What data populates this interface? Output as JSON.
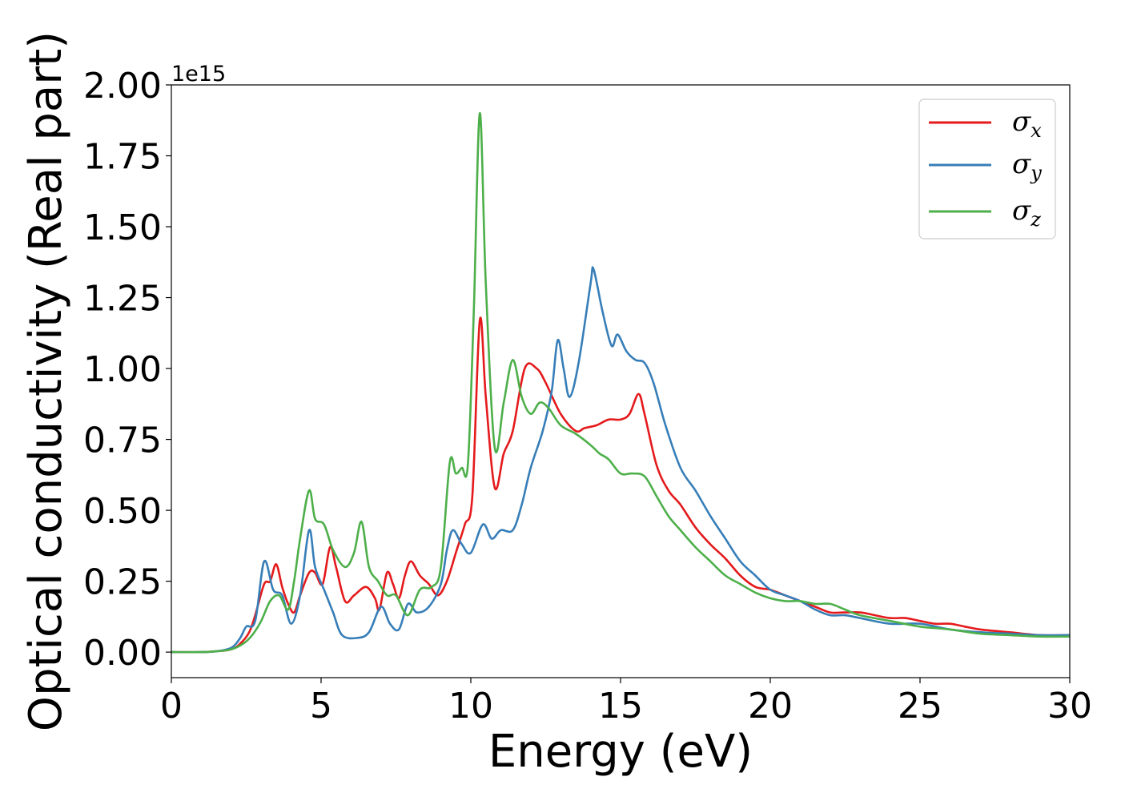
{
  "chart_data": {
    "type": "line",
    "title": "",
    "xlabel": "Energy (eV)",
    "ylabel": "Optical conductivity (Real part)",
    "y_offset_label": "1e15",
    "xlim": [
      0,
      30
    ],
    "ylim": [
      -0.09,
      2.0
    ],
    "x_ticks": [
      0,
      5,
      10,
      15,
      20,
      25,
      30
    ],
    "x_tick_labels": [
      "0",
      "5",
      "10",
      "15",
      "20",
      "25",
      "30"
    ],
    "y_ticks": [
      0.0,
      0.25,
      0.5,
      0.75,
      1.0,
      1.25,
      1.5,
      1.75,
      2.0
    ],
    "y_tick_labels": [
      "0.00",
      "0.25",
      "0.50",
      "0.75",
      "1.00",
      "1.25",
      "1.50",
      "1.75",
      "2.00"
    ],
    "grid": false,
    "legend_position": "top-right",
    "series": [
      {
        "name": "σx",
        "symbol": "σ",
        "subscript": "x",
        "color": "#e41a1c",
        "points": [
          [
            0,
            0
          ],
          [
            1,
            0
          ],
          [
            1.5,
            0.003
          ],
          [
            2,
            0.01
          ],
          [
            2.3,
            0.03
          ],
          [
            2.6,
            0.07
          ],
          [
            2.8,
            0.13
          ],
          [
            3.1,
            0.24
          ],
          [
            3.3,
            0.25
          ],
          [
            3.5,
            0.31
          ],
          [
            3.7,
            0.23
          ],
          [
            3.9,
            0.17
          ],
          [
            4.1,
            0.14
          ],
          [
            4.3,
            0.2
          ],
          [
            4.6,
            0.28
          ],
          [
            4.8,
            0.28
          ],
          [
            5.05,
            0.24
          ],
          [
            5.3,
            0.37
          ],
          [
            5.5,
            0.3
          ],
          [
            5.8,
            0.18
          ],
          [
            6.1,
            0.2
          ],
          [
            6.5,
            0.23
          ],
          [
            6.8,
            0.19
          ],
          [
            6.95,
            0.15
          ],
          [
            7.2,
            0.28
          ],
          [
            7.4,
            0.24
          ],
          [
            7.6,
            0.19
          ],
          [
            7.8,
            0.27
          ],
          [
            8.0,
            0.32
          ],
          [
            8.3,
            0.27
          ],
          [
            8.6,
            0.24
          ],
          [
            8.9,
            0.2
          ],
          [
            9.2,
            0.25
          ],
          [
            9.5,
            0.35
          ],
          [
            9.8,
            0.45
          ],
          [
            10.05,
            0.55
          ],
          [
            10.3,
            1.17
          ],
          [
            10.5,
            0.9
          ],
          [
            10.8,
            0.58
          ],
          [
            11.1,
            0.7
          ],
          [
            11.4,
            0.78
          ],
          [
            11.8,
            1.0
          ],
          [
            12.2,
            1.0
          ],
          [
            12.5,
            0.95
          ],
          [
            13.0,
            0.84
          ],
          [
            13.5,
            0.78
          ],
          [
            13.8,
            0.79
          ],
          [
            14.2,
            0.8
          ],
          [
            14.6,
            0.82
          ],
          [
            15.0,
            0.82
          ],
          [
            15.3,
            0.84
          ],
          [
            15.6,
            0.91
          ],
          [
            15.8,
            0.84
          ],
          [
            16.2,
            0.66
          ],
          [
            16.6,
            0.57
          ],
          [
            17.0,
            0.52
          ],
          [
            17.5,
            0.44
          ],
          [
            18.0,
            0.38
          ],
          [
            18.5,
            0.33
          ],
          [
            19.0,
            0.27
          ],
          [
            19.5,
            0.23
          ],
          [
            20.0,
            0.22
          ],
          [
            20.5,
            0.2
          ],
          [
            21.0,
            0.18
          ],
          [
            21.5,
            0.16
          ],
          [
            22.0,
            0.14
          ],
          [
            22.5,
            0.14
          ],
          [
            23.0,
            0.14
          ],
          [
            23.5,
            0.13
          ],
          [
            24.0,
            0.12
          ],
          [
            24.5,
            0.12
          ],
          [
            25.0,
            0.11
          ],
          [
            25.5,
            0.1
          ],
          [
            26.0,
            0.1
          ],
          [
            26.5,
            0.09
          ],
          [
            27.0,
            0.08
          ],
          [
            28.0,
            0.07
          ],
          [
            29.0,
            0.06
          ],
          [
            30.0,
            0.06
          ]
        ]
      },
      {
        "name": "σy",
        "symbol": "σ",
        "subscript": "y",
        "color": "#377eb8",
        "points": [
          [
            0,
            0
          ],
          [
            1,
            0
          ],
          [
            1.5,
            0.003
          ],
          [
            2,
            0.015
          ],
          [
            2.3,
            0.05
          ],
          [
            2.5,
            0.09
          ],
          [
            2.8,
            0.11
          ],
          [
            3.1,
            0.32
          ],
          [
            3.4,
            0.22
          ],
          [
            3.7,
            0.2
          ],
          [
            4.0,
            0.1
          ],
          [
            4.3,
            0.2
          ],
          [
            4.6,
            0.43
          ],
          [
            4.8,
            0.3
          ],
          [
            5.1,
            0.22
          ],
          [
            5.4,
            0.14
          ],
          [
            5.7,
            0.06
          ],
          [
            6.2,
            0.05
          ],
          [
            6.6,
            0.07
          ],
          [
            7.0,
            0.16
          ],
          [
            7.3,
            0.1
          ],
          [
            7.6,
            0.08
          ],
          [
            7.9,
            0.17
          ],
          [
            8.2,
            0.14
          ],
          [
            8.6,
            0.16
          ],
          [
            9.0,
            0.24
          ],
          [
            9.2,
            0.36
          ],
          [
            9.4,
            0.43
          ],
          [
            9.7,
            0.38
          ],
          [
            10.0,
            0.35
          ],
          [
            10.4,
            0.45
          ],
          [
            10.7,
            0.4
          ],
          [
            11.0,
            0.43
          ],
          [
            11.4,
            0.43
          ],
          [
            11.7,
            0.52
          ],
          [
            12.0,
            0.65
          ],
          [
            12.4,
            0.78
          ],
          [
            12.7,
            0.92
          ],
          [
            12.9,
            1.1
          ],
          [
            13.1,
            1.0
          ],
          [
            13.3,
            0.9
          ],
          [
            13.6,
            1.02
          ],
          [
            14.0,
            1.3
          ],
          [
            14.1,
            1.35
          ],
          [
            14.4,
            1.2
          ],
          [
            14.7,
            1.08
          ],
          [
            14.9,
            1.12
          ],
          [
            15.2,
            1.06
          ],
          [
            15.5,
            1.03
          ],
          [
            15.8,
            1.02
          ],
          [
            16.1,
            0.95
          ],
          [
            16.5,
            0.8
          ],
          [
            17.0,
            0.65
          ],
          [
            17.5,
            0.57
          ],
          [
            18.0,
            0.48
          ],
          [
            18.5,
            0.4
          ],
          [
            19.0,
            0.32
          ],
          [
            19.5,
            0.27
          ],
          [
            20.0,
            0.22
          ],
          [
            20.5,
            0.2
          ],
          [
            21.0,
            0.18
          ],
          [
            21.5,
            0.15
          ],
          [
            22.0,
            0.13
          ],
          [
            22.5,
            0.13
          ],
          [
            23.0,
            0.12
          ],
          [
            24.0,
            0.1
          ],
          [
            25.0,
            0.1
          ],
          [
            26.0,
            0.08
          ],
          [
            27.0,
            0.07
          ],
          [
            28.0,
            0.065
          ],
          [
            29.0,
            0.06
          ],
          [
            30.0,
            0.06
          ]
        ]
      },
      {
        "name": "σz",
        "symbol": "σ",
        "subscript": "z",
        "color": "#4daf4a",
        "points": [
          [
            0,
            0
          ],
          [
            1,
            0
          ],
          [
            1.5,
            0.003
          ],
          [
            2,
            0.01
          ],
          [
            2.4,
            0.03
          ],
          [
            2.7,
            0.06
          ],
          [
            3.0,
            0.11
          ],
          [
            3.3,
            0.18
          ],
          [
            3.6,
            0.2
          ],
          [
            3.9,
            0.15
          ],
          [
            4.1,
            0.25
          ],
          [
            4.3,
            0.4
          ],
          [
            4.6,
            0.57
          ],
          [
            4.8,
            0.47
          ],
          [
            5.1,
            0.45
          ],
          [
            5.4,
            0.36
          ],
          [
            5.8,
            0.3
          ],
          [
            6.1,
            0.35
          ],
          [
            6.35,
            0.46
          ],
          [
            6.6,
            0.3
          ],
          [
            6.9,
            0.25
          ],
          [
            7.2,
            0.2
          ],
          [
            7.5,
            0.2
          ],
          [
            7.9,
            0.13
          ],
          [
            8.3,
            0.22
          ],
          [
            8.7,
            0.23
          ],
          [
            9.0,
            0.3
          ],
          [
            9.3,
            0.67
          ],
          [
            9.5,
            0.63
          ],
          [
            9.7,
            0.65
          ],
          [
            9.9,
            0.66
          ],
          [
            10.1,
            1.2
          ],
          [
            10.3,
            1.9
          ],
          [
            10.5,
            1.3
          ],
          [
            10.8,
            0.72
          ],
          [
            11.1,
            0.88
          ],
          [
            11.4,
            1.03
          ],
          [
            11.7,
            0.9
          ],
          [
            12.0,
            0.84
          ],
          [
            12.3,
            0.88
          ],
          [
            12.6,
            0.86
          ],
          [
            13.0,
            0.8
          ],
          [
            13.5,
            0.77
          ],
          [
            14.0,
            0.73
          ],
          [
            14.3,
            0.7
          ],
          [
            14.6,
            0.68
          ],
          [
            15.0,
            0.63
          ],
          [
            15.4,
            0.63
          ],
          [
            15.8,
            0.62
          ],
          [
            16.2,
            0.55
          ],
          [
            16.6,
            0.48
          ],
          [
            17.0,
            0.43
          ],
          [
            17.5,
            0.37
          ],
          [
            18.0,
            0.32
          ],
          [
            18.5,
            0.27
          ],
          [
            19.0,
            0.24
          ],
          [
            19.5,
            0.21
          ],
          [
            20.0,
            0.19
          ],
          [
            20.5,
            0.18
          ],
          [
            21.0,
            0.18
          ],
          [
            21.5,
            0.17
          ],
          [
            22.0,
            0.17
          ],
          [
            22.5,
            0.15
          ],
          [
            23.0,
            0.13
          ],
          [
            24.0,
            0.11
          ],
          [
            25.0,
            0.09
          ],
          [
            26.0,
            0.08
          ],
          [
            27.0,
            0.065
          ],
          [
            28.0,
            0.06
          ],
          [
            29.0,
            0.055
          ],
          [
            30.0,
            0.055
          ]
        ]
      }
    ]
  }
}
